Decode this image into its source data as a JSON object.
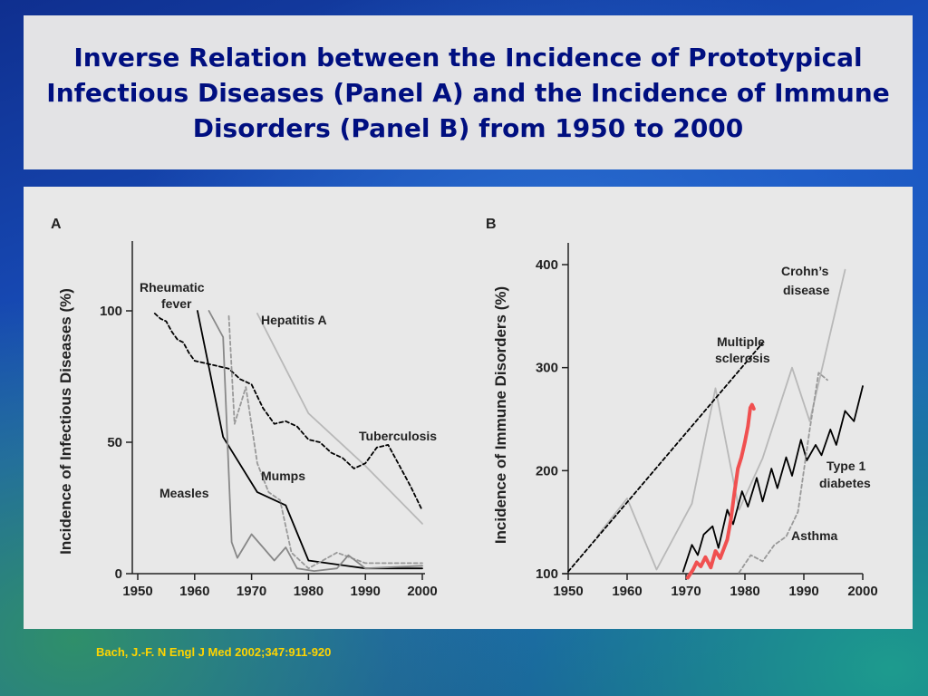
{
  "slide": {
    "title": "Inverse Relation between the Incidence of Prototypical Infectious Diseases (Panel A) and the Incidence of Immune Disorders (Panel B) from 1950 to 2000",
    "citation": "Bach, J.-F. N Engl J Med 2002;347:911-920"
  },
  "colors": {
    "title_text": "#000f80",
    "citation_text": "#ffd400",
    "panel_background": "#e8e8e8",
    "highlight_stroke": "#f05050"
  },
  "chart_data": [
    {
      "panel": "A",
      "type": "line",
      "ylabel": "Incidence of Infectious Diseases (%)",
      "xlabel": "",
      "xlim": [
        1950,
        2000
      ],
      "ylim": [
        0,
        130
      ],
      "xticks": [
        "1950",
        "1960",
        "1970",
        "1980",
        "1990",
        "2000"
      ],
      "yticks": [
        "0",
        "50",
        "100"
      ],
      "grid": false,
      "series": [
        {
          "name": "Rheumatic fever",
          "label_lines": [
            "Rheumatic",
            "fever"
          ],
          "style": "solid",
          "color": "#000000",
          "x": [
            1960.5,
            1965,
            1971,
            1976,
            1980,
            1990,
            2000
          ],
          "y": [
            100,
            52,
            31,
            26,
            5,
            2,
            2
          ]
        },
        {
          "name": "Hepatitis A",
          "label_lines": [
            "Hepatitis A"
          ],
          "style": "solid",
          "color": "#b8b8b8",
          "x": [
            1971,
            1980,
            1990,
            2000
          ],
          "y": [
            99,
            61,
            41,
            19
          ]
        },
        {
          "name": "Tuberculosis",
          "label_lines": [
            "Tuberculosis"
          ],
          "style": "dashed",
          "color": "#000000",
          "x": [
            1953,
            1954,
            1955,
            1956,
            1957,
            1958,
            1959,
            1960,
            1962,
            1964,
            1966,
            1968,
            1970,
            1972,
            1974,
            1976,
            1978,
            1980,
            1982,
            1984,
            1986,
            1988,
            1990,
            1992,
            1994,
            1996,
            1998,
            2000
          ],
          "y": [
            99,
            97,
            96,
            92,
            89,
            88,
            84,
            81,
            80,
            79,
            78,
            74,
            72,
            63,
            57,
            58,
            56,
            51,
            50,
            46,
            44,
            40,
            42,
            48,
            49,
            41,
            33,
            24
          ]
        },
        {
          "name": "Mumps",
          "label_lines": [
            "Mumps"
          ],
          "style": "dashed",
          "color": "#999999",
          "x": [
            1966,
            1967,
            1969,
            1971,
            1973,
            1975,
            1977,
            1980,
            1985,
            1990,
            2000
          ],
          "y": [
            98,
            57,
            71,
            42,
            31,
            28,
            8,
            2,
            8,
            4,
            4
          ]
        },
        {
          "name": "Measles",
          "label_lines": [
            "Measles"
          ],
          "style": "solid",
          "color": "#888888",
          "x": [
            1962.5,
            1965,
            1966.5,
            1967.5,
            1970,
            1972,
            1974,
            1976,
            1978,
            1981,
            1985,
            1987,
            1990,
            2000
          ],
          "y": [
            100,
            90,
            12,
            6,
            15,
            10,
            5,
            10,
            2,
            1,
            2,
            7,
            2,
            3
          ]
        }
      ]
    },
    {
      "panel": "B",
      "type": "line",
      "ylabel": "Incidence of Immune Disorders (%)",
      "xlabel": "",
      "xlim": [
        1950,
        2000
      ],
      "ylim": [
        100,
        420
      ],
      "xticks": [
        "1950",
        "1960",
        "1970",
        "1980",
        "1990",
        "2000"
      ],
      "yticks": [
        "100",
        "200",
        "300",
        "400"
      ],
      "grid": false,
      "series": [
        {
          "name": "Crohn’s disease",
          "label_lines": [
            "Crohn’s",
            "disease"
          ],
          "style": "solid",
          "color": "#b8b8b8",
          "x": [
            1955,
            1960,
            1965,
            1971,
            1975,
            1979,
            1983,
            1988,
            1991,
            1997
          ],
          "y": [
            137,
            173,
            104,
            168,
            280,
            162,
            212,
            300,
            248,
            395
          ]
        },
        {
          "name": "Multiple sclerosis",
          "label_lines": [
            "Multiple",
            "sclerosis"
          ],
          "style": "dashed",
          "color": "#000000",
          "x": [
            1950,
            1983
          ],
          "y": [
            102,
            324
          ]
        },
        {
          "name": "Type 1 diabetes",
          "label_lines": [
            "Type 1",
            "diabetes"
          ],
          "style": "solid",
          "color": "#000000",
          "x": [
            1969.5,
            1971,
            1972,
            1973,
            1974.5,
            1975.5,
            1977,
            1978,
            1979.5,
            1980.5,
            1982,
            1983,
            1984.5,
            1985.5,
            1987,
            1988,
            1989.5,
            1990.5,
            1992,
            1993,
            1994.5,
            1995.5,
            1997,
            1998.5,
            2000
          ],
          "y": [
            102,
            128,
            118,
            138,
            146,
            125,
            162,
            148,
            180,
            165,
            193,
            170,
            202,
            183,
            213,
            195,
            230,
            210,
            225,
            215,
            240,
            225,
            258,
            248,
            282
          ]
        },
        {
          "name": "Asthma",
          "label_lines": [
            "Asthma"
          ],
          "style": "dashed",
          "color": "#999999",
          "x": [
            1979,
            1981,
            1983,
            1985,
            1987,
            1989,
            1991,
            1992.5,
            1994
          ],
          "y": [
            101,
            118,
            112,
            128,
            136,
            160,
            240,
            295,
            288
          ]
        },
        {
          "name": "",
          "label_lines": [],
          "style": "solid",
          "color": "#f05050",
          "stroke_width": 4,
          "x": [
            1970.3,
            1971.2,
            1971.8,
            1972.5,
            1973.3,
            1974.2,
            1975,
            1975.8,
            1976.4,
            1977,
            1977.6,
            1978.2,
            1978.8,
            1979.4,
            1980,
            1980.5,
            1980.9,
            1981.2,
            1981.5
          ],
          "y": [
            96,
            104,
            111,
            107,
            116,
            106,
            122,
            115,
            124,
            133,
            152,
            178,
            202,
            213,
            228,
            243,
            261,
            264,
            260
          ]
        }
      ]
    }
  ]
}
